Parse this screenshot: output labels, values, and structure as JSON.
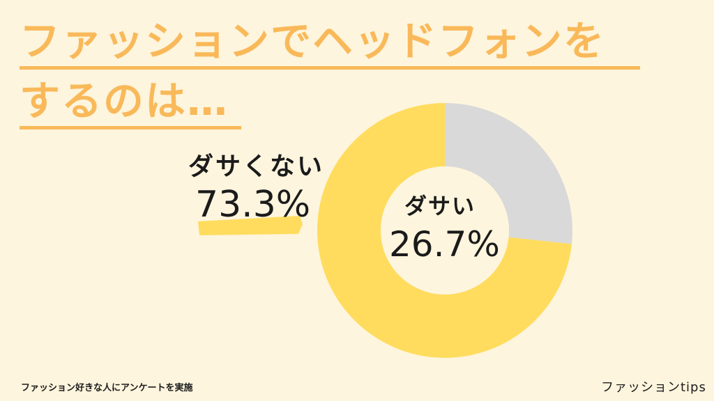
{
  "title": {
    "line1": "ファッションでヘッドフォンを",
    "line2": "するのは…",
    "color": "#f9b95a"
  },
  "chart_data": {
    "type": "pie",
    "variant": "donut",
    "slices": [
      {
        "label": "ダサい",
        "value": 26.7,
        "value_text": "26.7%",
        "color": "#d9d9d9"
      },
      {
        "label": "ダサくない",
        "value": 73.3,
        "value_text": "73.3%",
        "color": "#ffdc5e"
      }
    ],
    "title": "ファッションでヘッドフォンをするのは…"
  },
  "footer": {
    "note": "ファッション好きな人にアンケートを実施",
    "brand": "ファッションtips"
  },
  "colors": {
    "background": "#fdf5dd",
    "highlight": "#ffdc5e",
    "text": "#1b1b1b"
  }
}
